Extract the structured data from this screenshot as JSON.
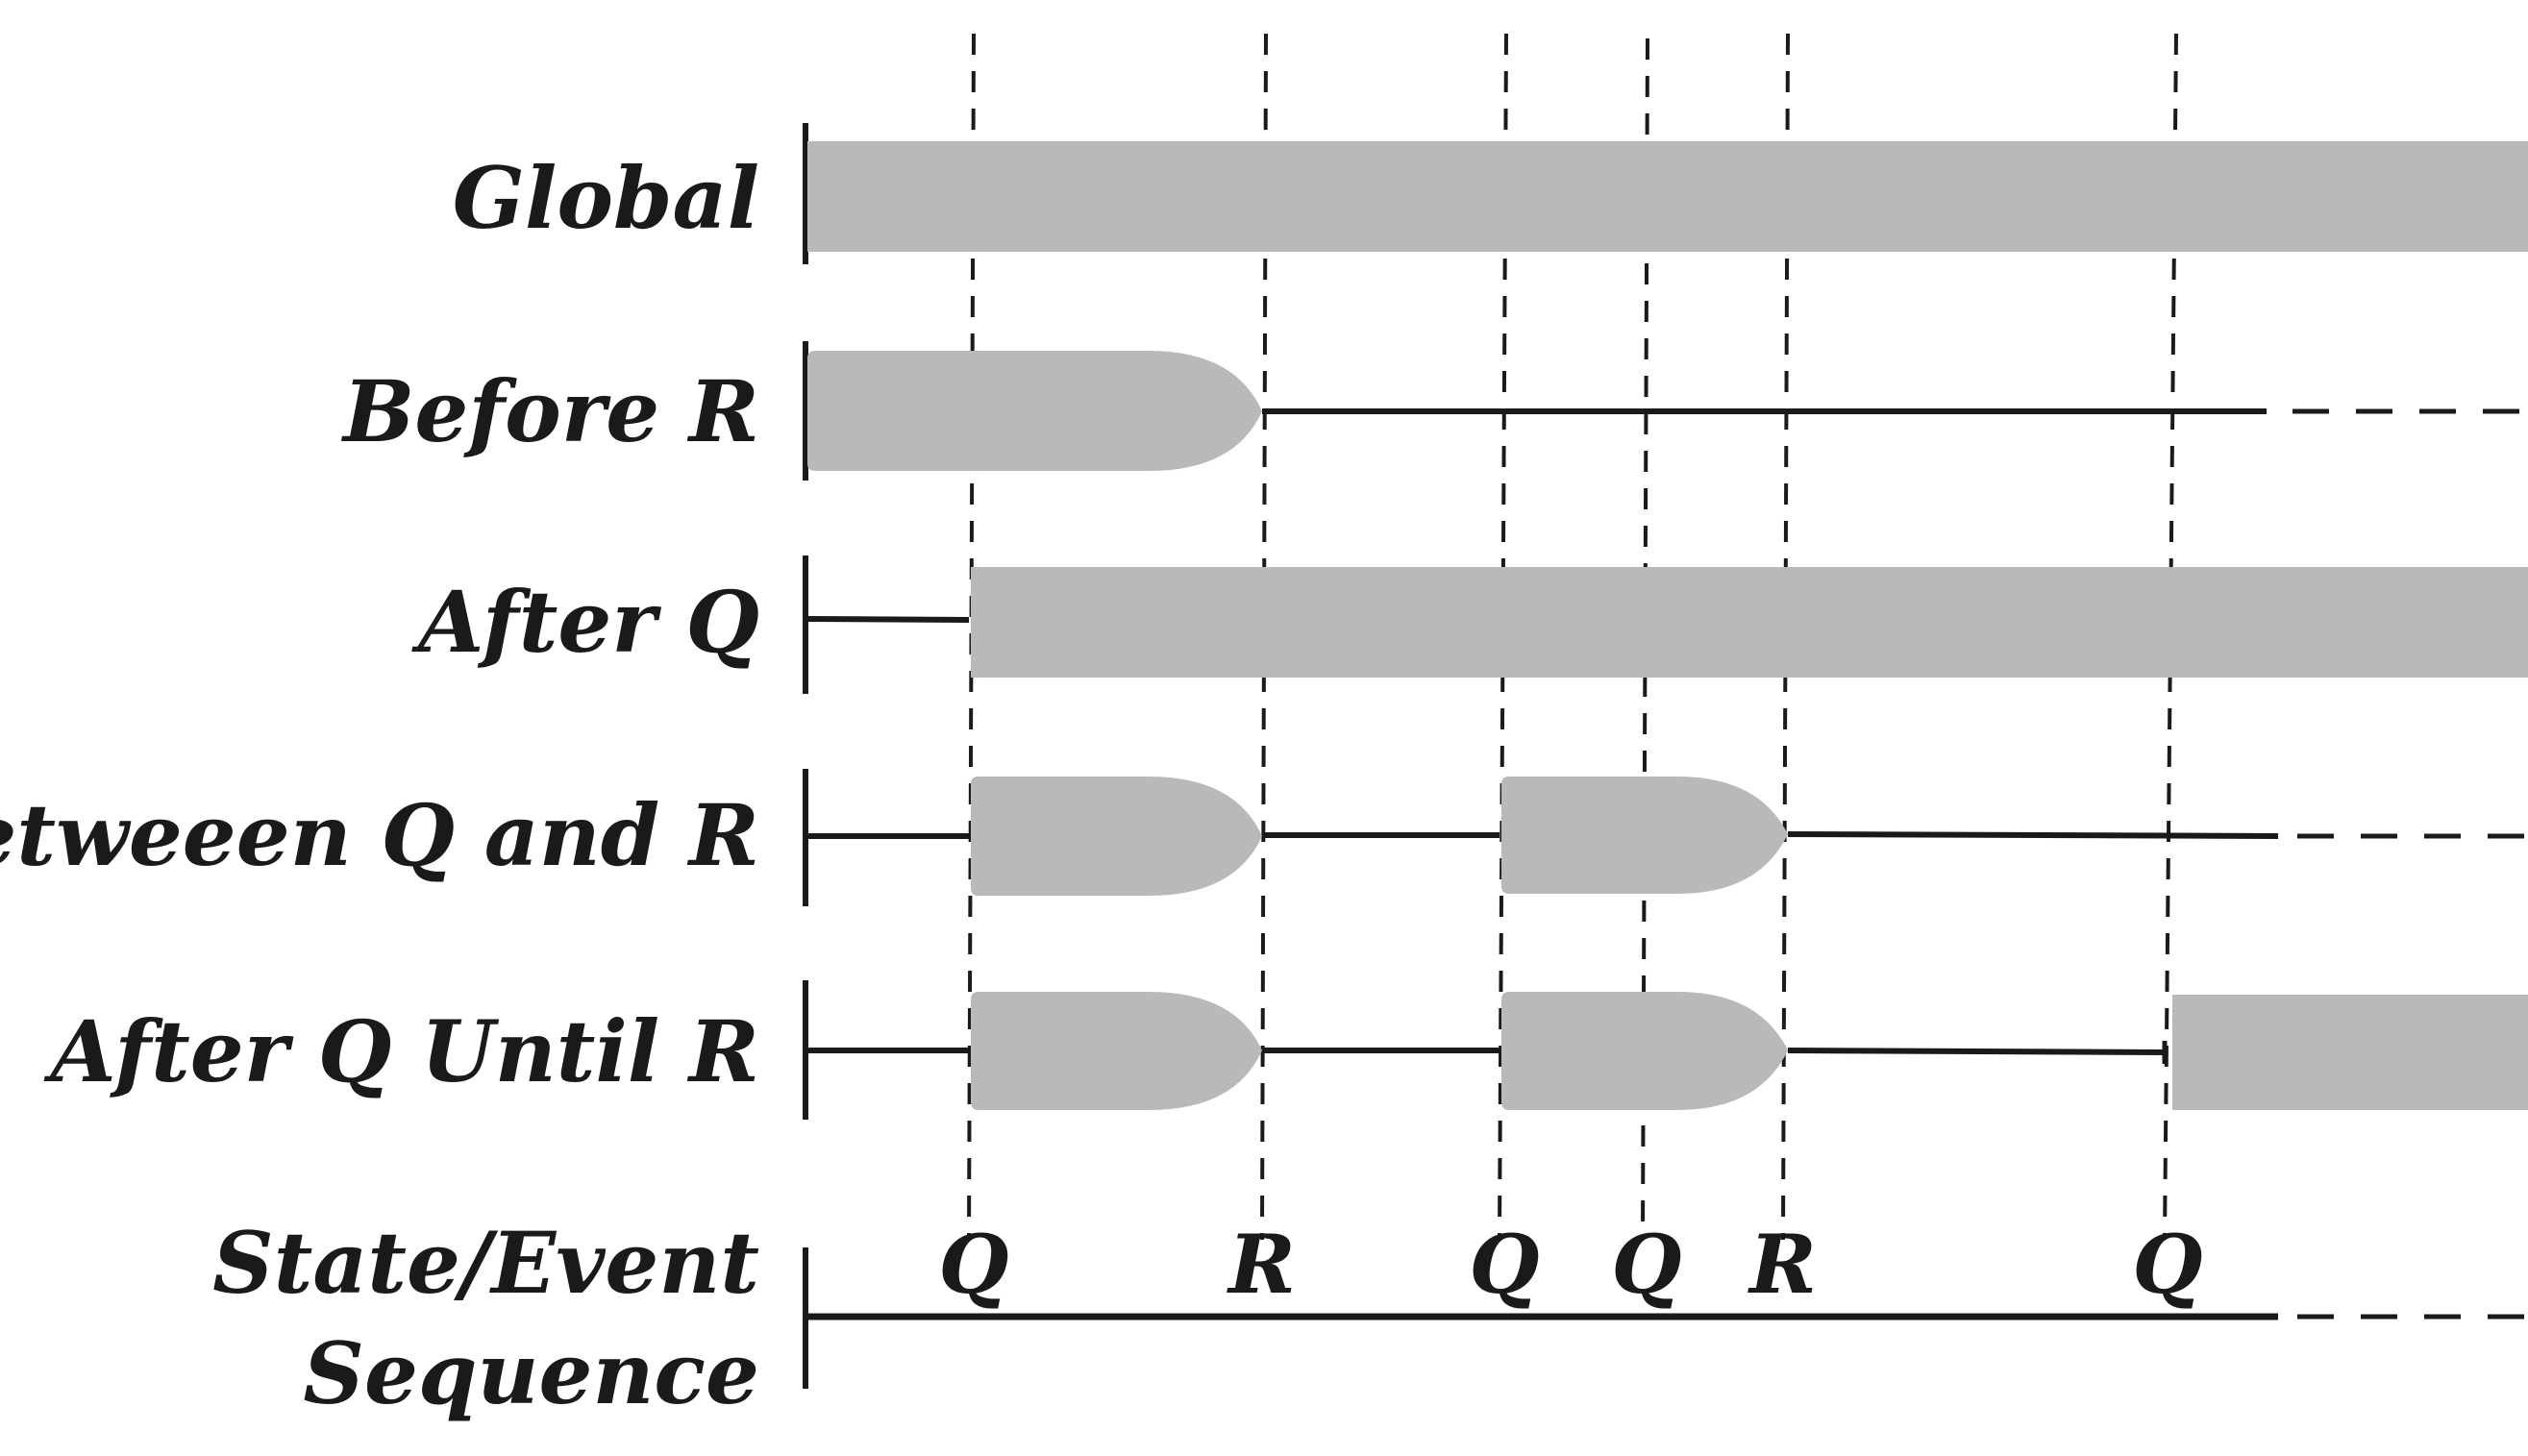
{
  "rows": [
    {
      "label": "Global"
    },
    {
      "label": "Before R"
    },
    {
      "label": "After Q"
    },
    {
      "label": "Betweeen Q and R"
    },
    {
      "label": "After Q Until R"
    }
  ],
  "sequence": {
    "label_line1": "State/Event",
    "label_line2": "Sequence",
    "events": [
      "Q",
      "R",
      "Q",
      "Q",
      "R",
      "Q"
    ]
  },
  "colors": {
    "interval_fill": "#b9b9b9",
    "line": "#1a1a1a"
  }
}
